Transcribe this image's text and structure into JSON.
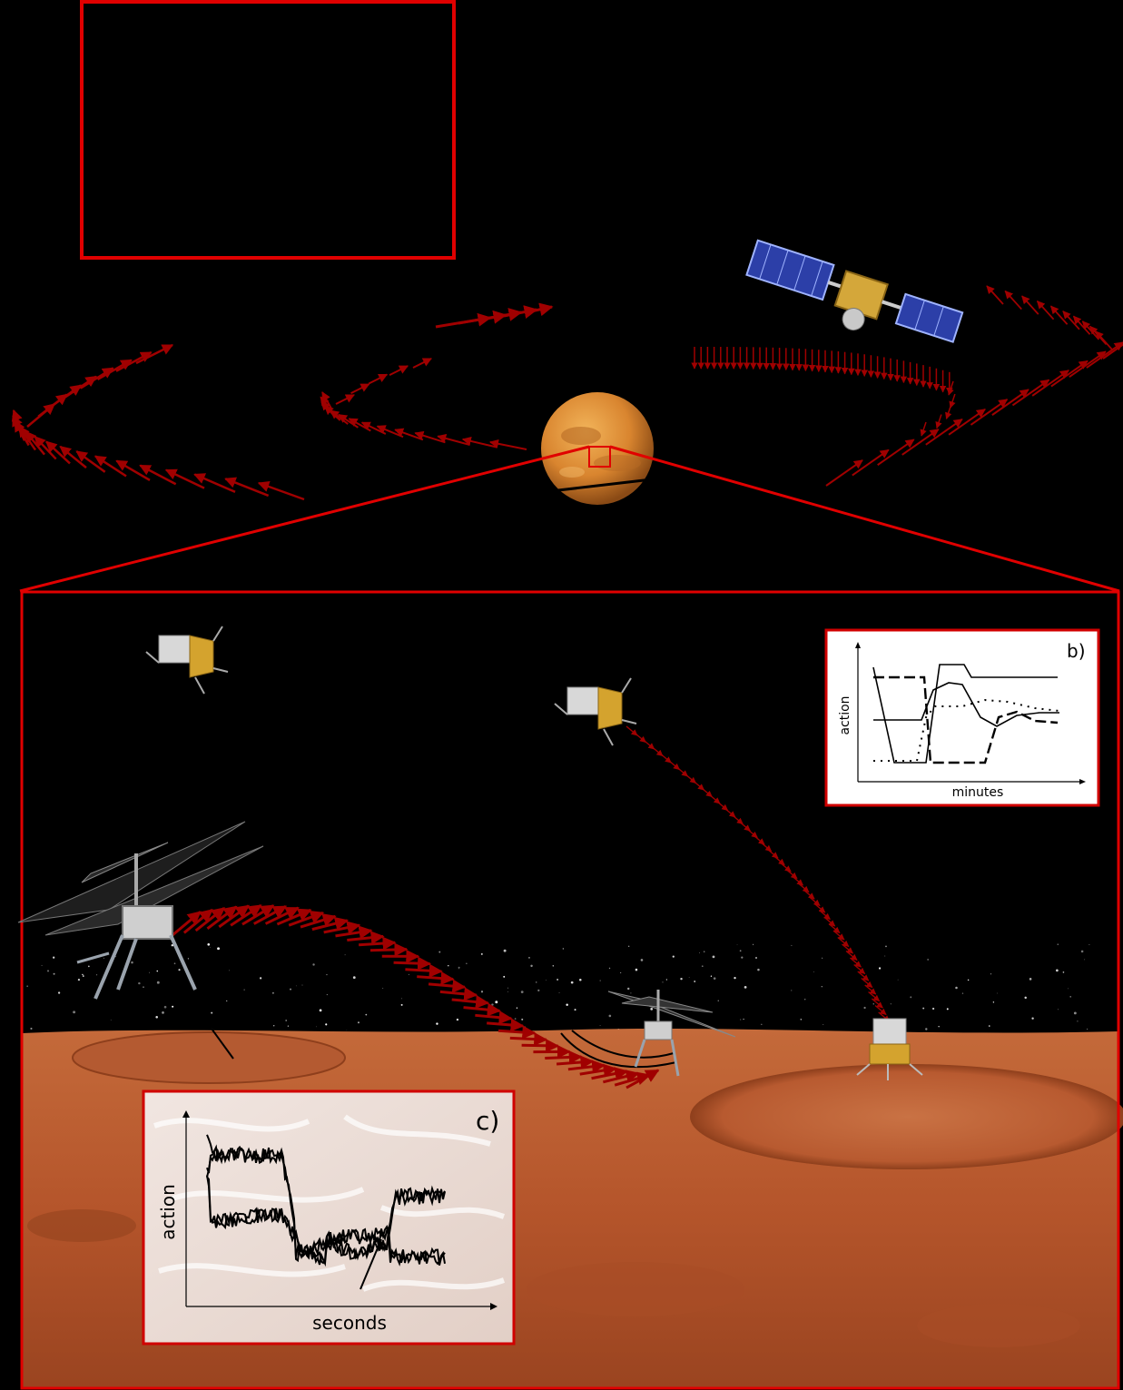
{
  "colors": {
    "background": "#000000",
    "frame_red": "#e00000",
    "arrow_red": "#a00000",
    "mars_ground": "#b5552b",
    "planet_orange": "#d9852f",
    "inset_bg": "#ffffff",
    "curve": "#000000"
  },
  "icons": [
    "satellite-icon",
    "planet-icon",
    "lander-icon",
    "helicopter-icon"
  ],
  "inset_b": {
    "label": "b)",
    "ylabel": "action",
    "xlabel": "minutes"
  },
  "inset_c": {
    "label": "c)",
    "ylabel": "action",
    "xlabel": "seconds"
  }
}
